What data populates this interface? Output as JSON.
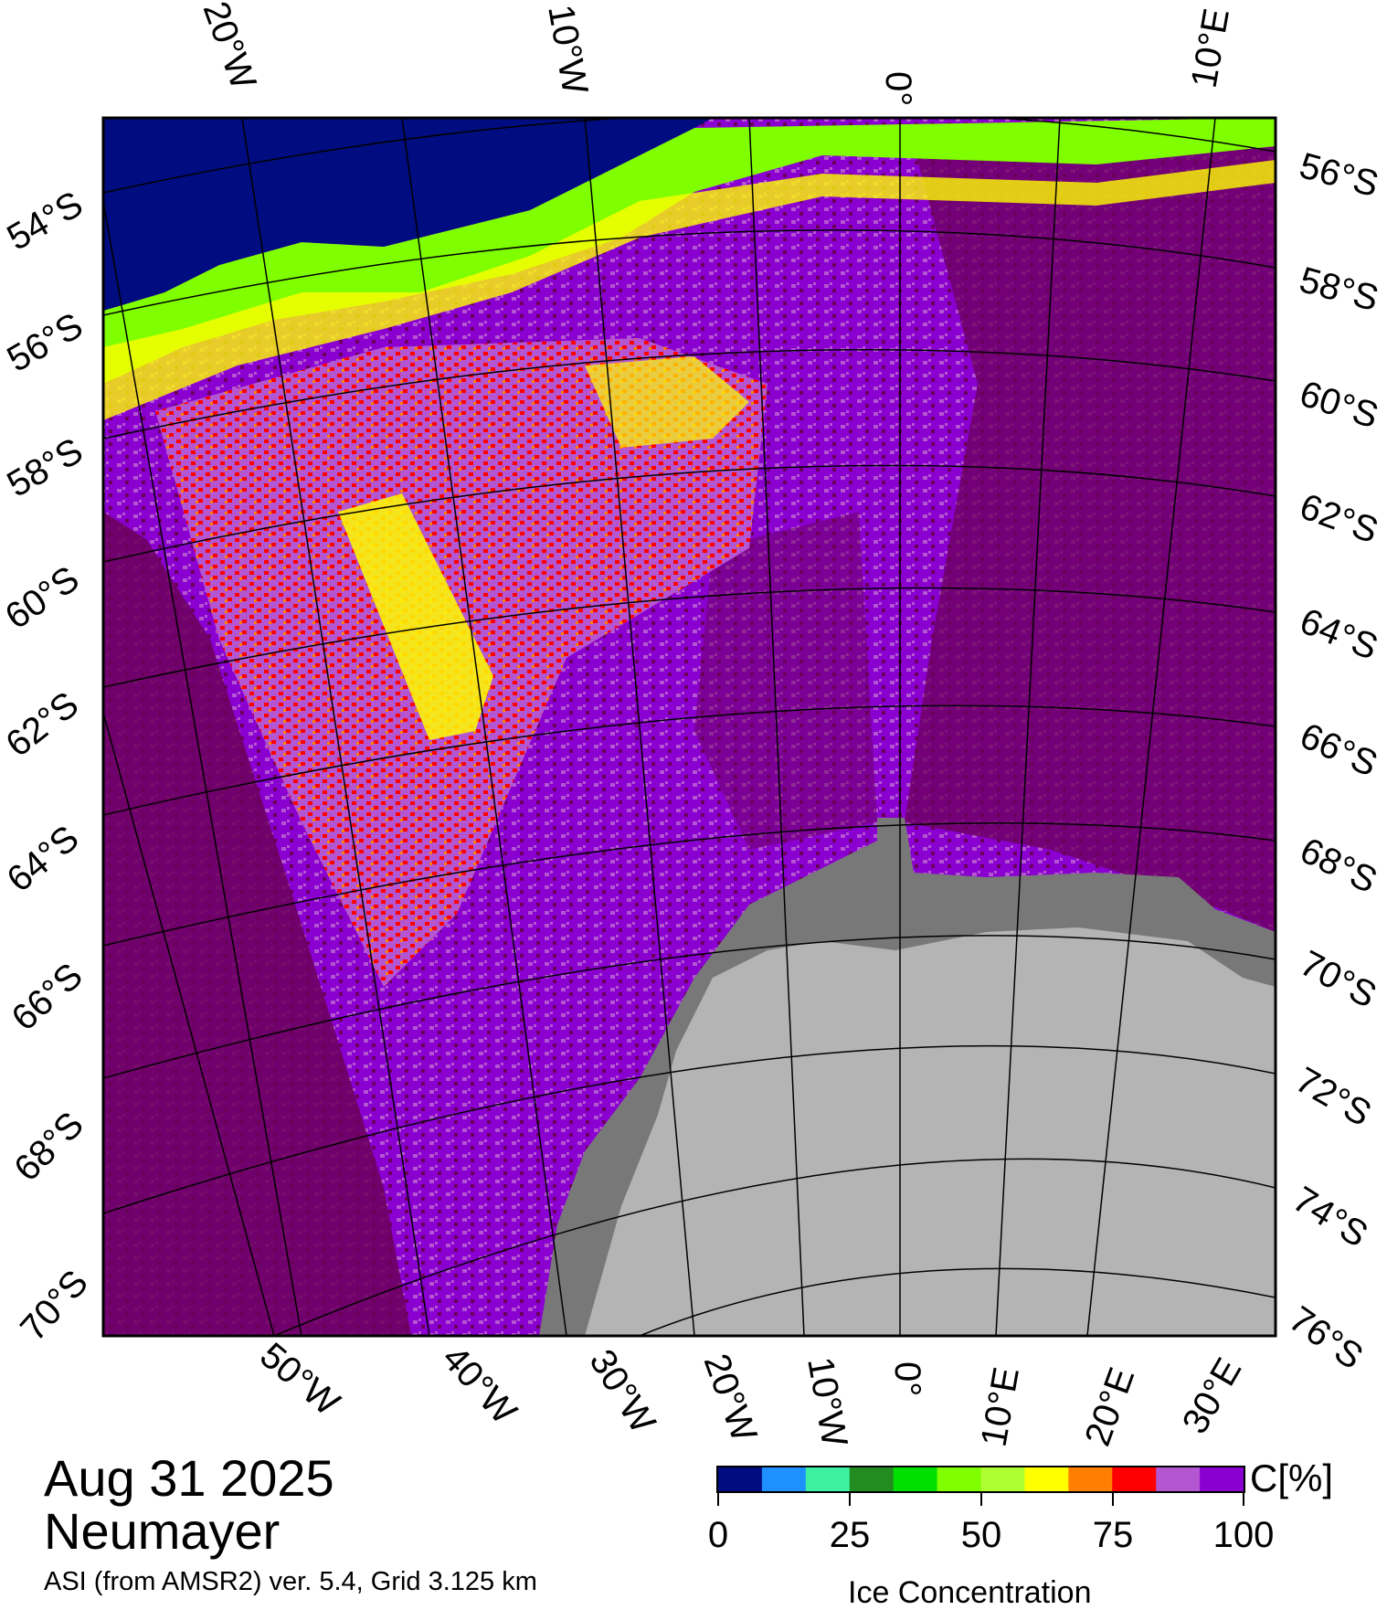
{
  "meta": {
    "date": "Aug 31 2025",
    "station": "Neumayer",
    "source": "ASI (from AMSR2) ver. 5.4,  Grid 3.125 km"
  },
  "top_axis": [
    "20°W",
    "10°W",
    "0°",
    "10°E"
  ],
  "left_axis": [
    "54°S",
    "56°S",
    "58°S",
    "60°S",
    "62°S",
    "64°S",
    "66°S",
    "68°S",
    "70°S"
  ],
  "right_axis": [
    "56°S",
    "58°S",
    "60°S",
    "62°S",
    "64°S",
    "66°S",
    "68°S",
    "70°S",
    "72°S",
    "74°S",
    "76°S"
  ],
  "bottom_axis": [
    "50°W",
    "40°W",
    "30°W",
    "20°W",
    "10°W",
    "0°",
    "10°E",
    "20°E",
    "30°E"
  ],
  "colorbar": {
    "title": "Ice Concentration",
    "unit": "C[%]",
    "range": [
      0,
      100
    ],
    "ticks": [
      "0",
      "25",
      "50",
      "75",
      "100"
    ],
    "colors": [
      "#000c7f",
      "#1e90ff",
      "#3cf0a0",
      "#228b22",
      "#00e000",
      "#7fff00",
      "#adff2f",
      "#ffff00",
      "#ff8000",
      "#ff0000",
      "#b455d2",
      "#8a00d0"
    ]
  },
  "legend_colors": {
    "open_water": "#000c7f",
    "high_ice": "#6b0059",
    "land": "#b4b4b4",
    "ice_shelf": "#787878"
  }
}
